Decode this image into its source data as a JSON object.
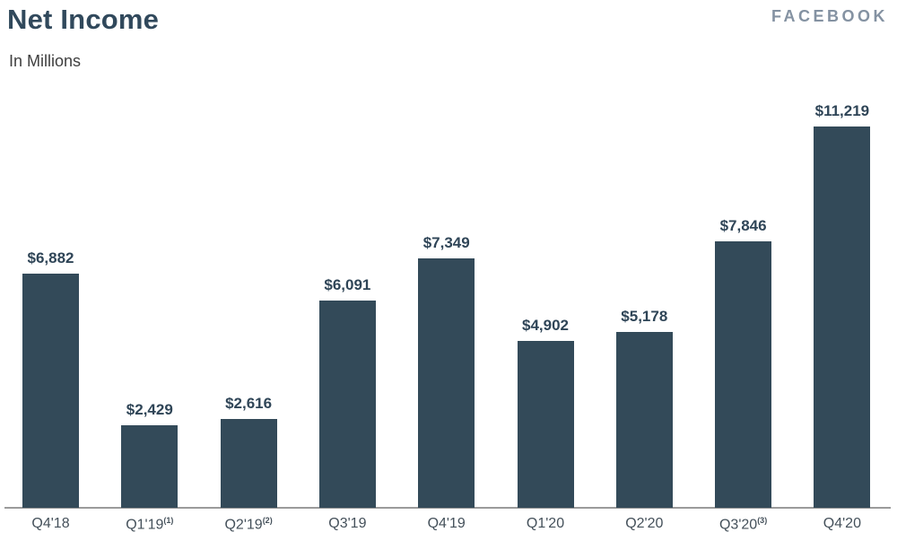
{
  "header": {
    "title": "Net Income",
    "subtitle": "In Millions",
    "brand": "FACEBOOK"
  },
  "chart_data": {
    "type": "bar",
    "title": "Net Income",
    "subtitle": "In Millions",
    "categories": [
      "Q4'18",
      "Q1'19",
      "Q2'19",
      "Q3'19",
      "Q4'19",
      "Q1'20",
      "Q2'20",
      "Q3'20",
      "Q4'20"
    ],
    "footnotes": [
      "",
      "(1)",
      "(2)",
      "",
      "",
      "",
      "",
      "(3)",
      ""
    ],
    "values": [
      6882,
      2429,
      2616,
      6091,
      7349,
      4902,
      5178,
      7846,
      11219
    ],
    "value_labels": [
      "$6,882",
      "$2,429",
      "$2,616",
      "$6,091",
      "$7,349",
      "$4,902",
      "$5,178",
      "$7,846",
      "$11,219"
    ],
    "xlabel": "",
    "ylabel": "",
    "ylim": [
      0,
      12000
    ],
    "grid": false,
    "legend": null,
    "bar_color": "#334a59",
    "axis_color": "#9b9b9b",
    "value_label_color": "#2f4557",
    "tick_label_color": "#44505a",
    "brand_color": "#8492a2"
  }
}
